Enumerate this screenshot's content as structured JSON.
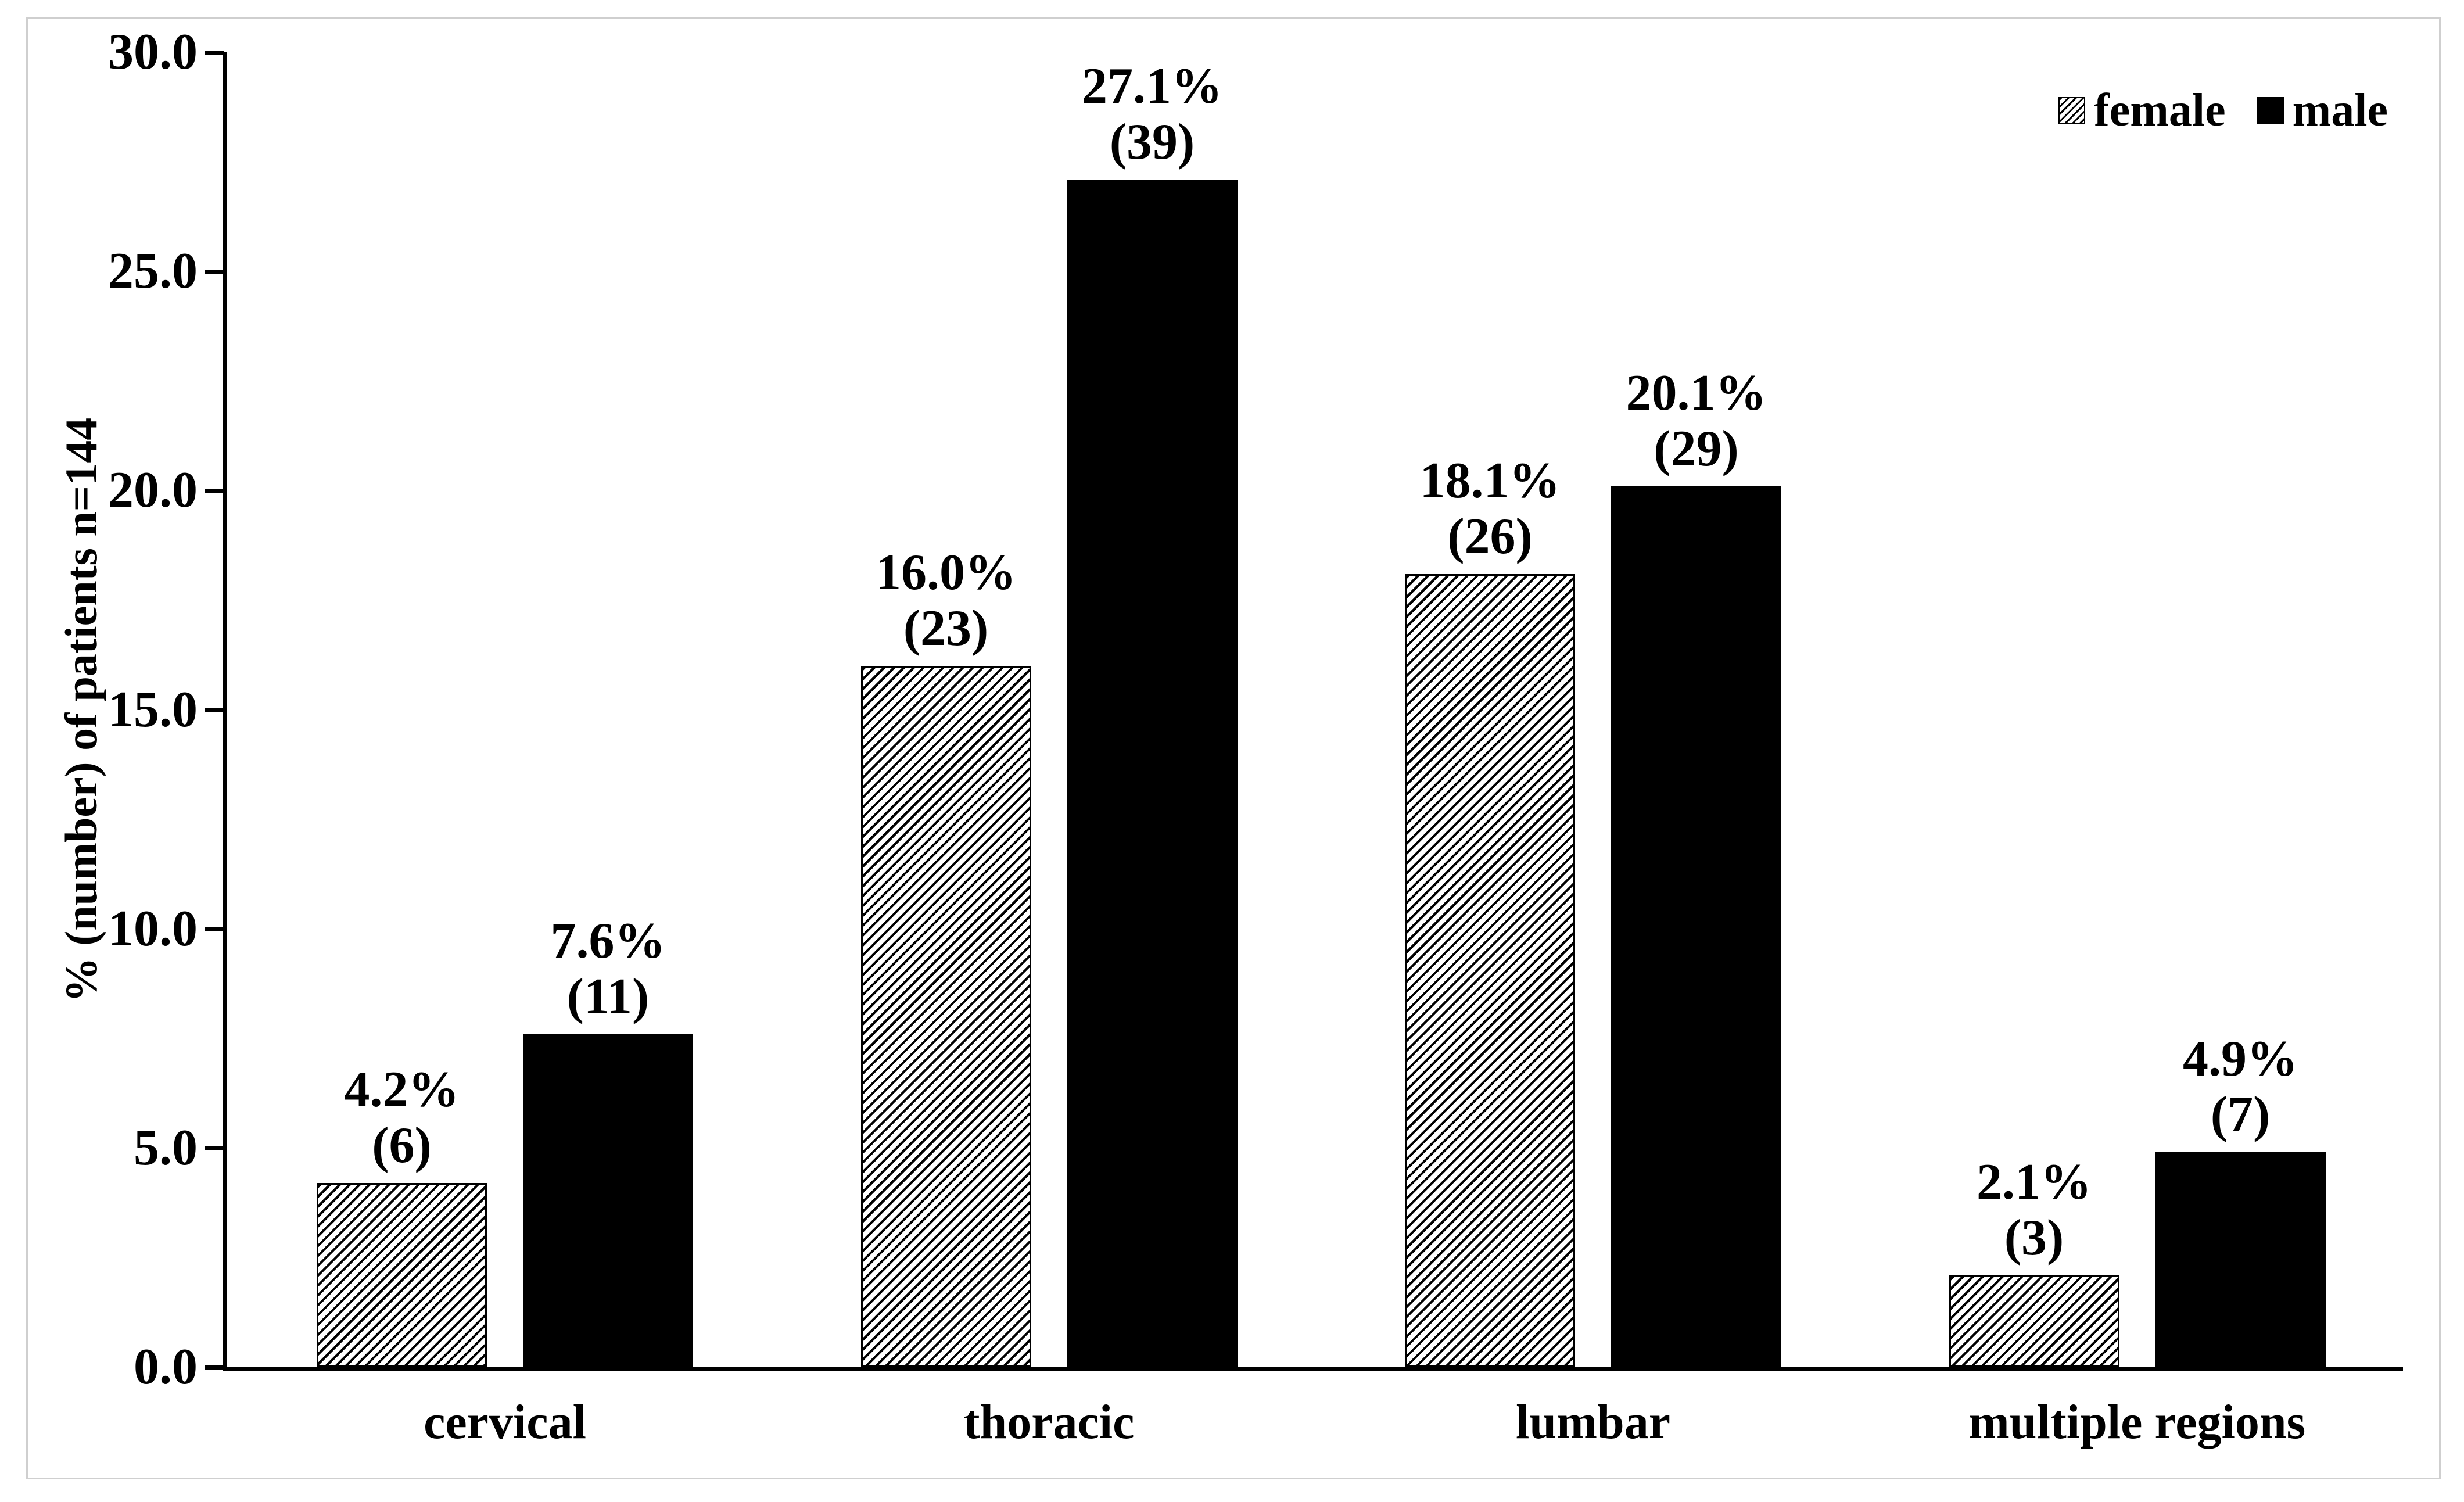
{
  "chart_data": {
    "type": "bar",
    "title": "",
    "ylabel": "% (number) of patients n=144",
    "xlabel": "",
    "ylim": [
      0,
      30
    ],
    "y_tick_labels": [
      "30.0",
      "25.0",
      "20.0",
      "15.0",
      "10.0",
      "5.0",
      "0.0"
    ],
    "grid": false,
    "legend_position": "top-right",
    "categories": [
      "cervical",
      "thoracic",
      "lumbar",
      "multiple regions"
    ],
    "series": [
      {
        "name": "female",
        "style": "hatched",
        "values": [
          4.2,
          16.0,
          18.1,
          2.1
        ],
        "counts": [
          6,
          23,
          26,
          3
        ],
        "percent_labels": [
          "4.2%",
          "16.0%",
          "18.1%",
          "2.1%"
        ],
        "count_labels": [
          "(6)",
          "(23)",
          "(26)",
          "(3)"
        ]
      },
      {
        "name": "male",
        "style": "solid",
        "values": [
          7.6,
          27.1,
          20.1,
          4.9
        ],
        "counts": [
          11,
          39,
          29,
          7
        ],
        "percent_labels": [
          "7.6%",
          "27.1%",
          "20.1%",
          "4.9%"
        ],
        "count_labels": [
          "(11)",
          "(39)",
          "(29)",
          "(7)"
        ]
      }
    ]
  },
  "colors": {
    "bar_black": "#000000",
    "hatch_line": "#000000",
    "background": "#ffffff",
    "axis": "#000000",
    "frame_border": "#cfcfcf",
    "text": "#000000"
  }
}
